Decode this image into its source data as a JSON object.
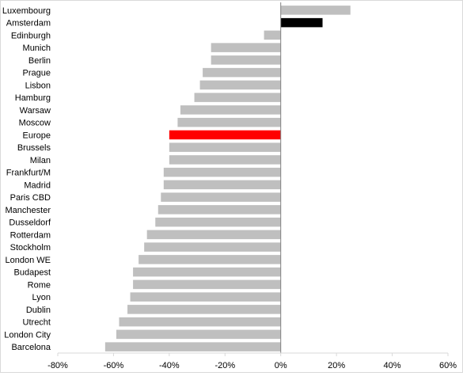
{
  "chart_data": {
    "type": "bar",
    "orientation": "horizontal",
    "title": "",
    "xlabel": "",
    "ylabel": "",
    "xlim": [
      -0.8,
      0.6
    ],
    "x_ticks": [
      -0.8,
      -0.6,
      -0.4,
      -0.2,
      0,
      0.2,
      0.4,
      0.6
    ],
    "x_tick_labels": [
      "-80%",
      "-60%",
      "-40%",
      "-20%",
      "0%",
      "20%",
      "40%",
      "60%"
    ],
    "grid": false,
    "legend": "none",
    "categories": [
      "Luxembourg",
      "Amsterdam",
      "Edinburgh",
      "Munich",
      "Berlin",
      "Prague",
      "Lisbon",
      "Hamburg",
      "Warsaw",
      "Moscow",
      "Europe",
      "Brussels",
      "Milan",
      "Frankfurt/M",
      "Madrid",
      "Paris CBD",
      "Manchester",
      "Dusseldorf",
      "Rotterdam",
      "Stockholm",
      "London WE",
      "Budapest",
      "Rome",
      "Lyon",
      "Dublin",
      "Utrecht",
      "London City",
      "Barcelona"
    ],
    "values": [
      0.25,
      0.15,
      -0.06,
      -0.25,
      -0.25,
      -0.28,
      -0.29,
      -0.31,
      -0.36,
      -0.37,
      -0.4,
      -0.4,
      -0.4,
      -0.42,
      -0.42,
      -0.43,
      -0.44,
      -0.45,
      -0.48,
      -0.49,
      -0.51,
      -0.53,
      -0.53,
      -0.54,
      -0.55,
      -0.58,
      -0.59,
      -0.63
    ],
    "colors": {
      "default": "#bfbfbf",
      "Amsterdam": "#000000",
      "Europe": "#ff0000"
    }
  }
}
